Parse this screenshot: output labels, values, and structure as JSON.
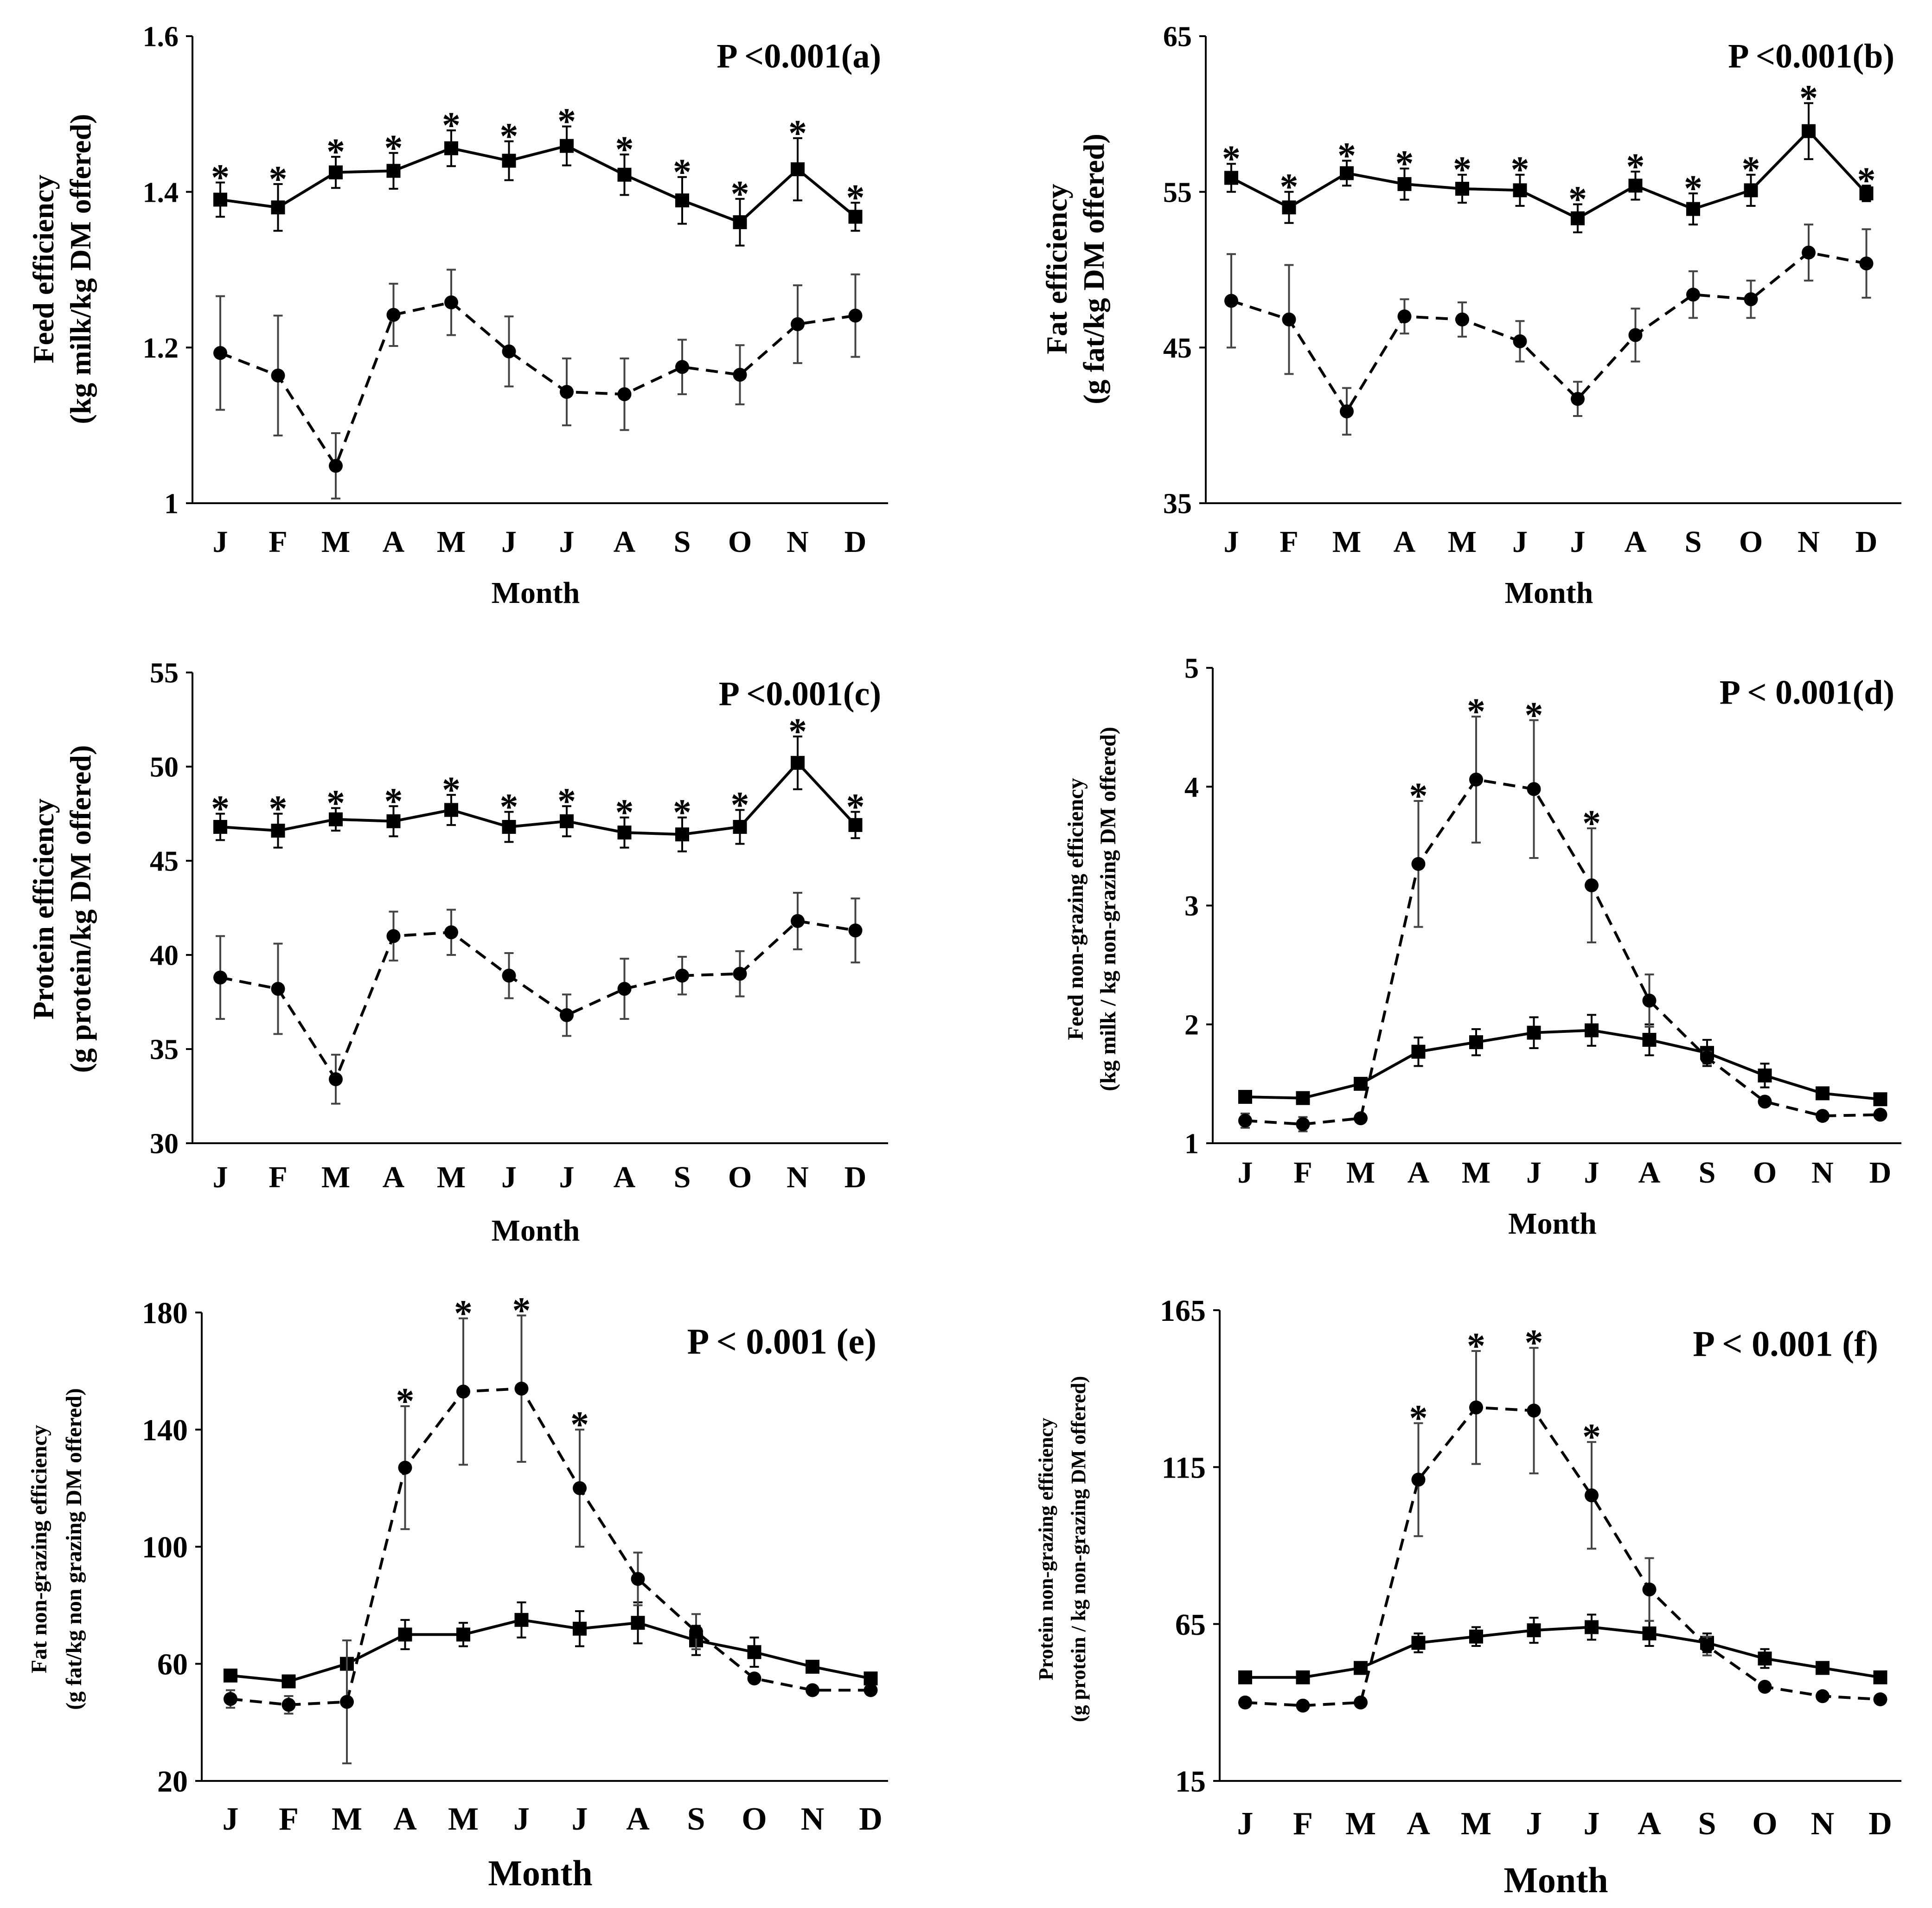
{
  "months": [
    "J",
    "F",
    "M",
    "A",
    "M",
    "J",
    "J",
    "A",
    "S",
    "O",
    "N",
    "D"
  ],
  "series_labels": {
    "solid": "Solid line, square markers",
    "dashed": "Dashed line, circle markers"
  },
  "significance_marker": "*",
  "xlabel": "Month",
  "chart_data": [
    {
      "id": "a",
      "type": "line",
      "panel_label": "P <0.001(a)",
      "ylabel_lines": [
        "Feed efficiency",
        "(kg milk/kg DM offered)"
      ],
      "ylim": [
        1,
        1.6
      ],
      "yticks": [
        1,
        1.2,
        1.4,
        1.6
      ],
      "ytick_labels": [
        "1",
        "1.2",
        "1.4",
        "1.6"
      ],
      "categories": [
        "J",
        "F",
        "M",
        "A",
        "M",
        "J",
        "J",
        "A",
        "S",
        "O",
        "N",
        "D"
      ],
      "series": [
        {
          "name": "solid",
          "marker": "square",
          "values": [
            1.39,
            1.38,
            1.425,
            1.427,
            1.456,
            1.44,
            1.459,
            1.422,
            1.389,
            1.361,
            1.429,
            1.368
          ],
          "err": [
            0.022,
            0.03,
            0.02,
            0.023,
            0.023,
            0.025,
            0.025,
            0.026,
            0.03,
            0.03,
            0.04,
            0.018
          ]
        },
        {
          "name": "dashed",
          "marker": "circle",
          "values": [
            1.193,
            1.164,
            1.048,
            1.242,
            1.258,
            1.195,
            1.143,
            1.14,
            1.175,
            1.165,
            1.23,
            1.241
          ],
          "err": [
            0.073,
            0.077,
            0.042,
            0.04,
            0.042,
            0.045,
            0.043,
            0.046,
            0.035,
            0.038,
            0.05,
            0.053
          ]
        }
      ],
      "significant": [
        true,
        true,
        true,
        true,
        true,
        true,
        true,
        true,
        true,
        true,
        true,
        true
      ]
    },
    {
      "id": "b",
      "type": "line",
      "panel_label": "P <0.001(b)",
      "ylabel_lines": [
        "Fat efficiency",
        "(g fat/kg DM offered)"
      ],
      "ylim": [
        35,
        65
      ],
      "yticks": [
        35,
        45,
        55,
        65
      ],
      "ytick_labels": [
        "35",
        "45",
        "55",
        "65"
      ],
      "categories": [
        "J",
        "F",
        "M",
        "A",
        "M",
        "J",
        "J",
        "A",
        "S",
        "O",
        "N",
        "D"
      ],
      "series": [
        {
          "name": "solid",
          "marker": "square",
          "values": [
            55.9,
            54.0,
            56.2,
            55.5,
            55.2,
            55.1,
            53.3,
            55.4,
            53.9,
            55.1,
            58.9,
            54.9
          ],
          "err": [
            0.9,
            1.0,
            0.8,
            1.0,
            0.9,
            1.0,
            0.9,
            0.9,
            1.0,
            1.0,
            1.8,
            0.5
          ]
        },
        {
          "name": "dashed",
          "marker": "circle",
          "values": [
            48.0,
            46.8,
            40.9,
            47.0,
            46.8,
            45.4,
            41.7,
            45.8,
            48.4,
            48.1,
            51.1,
            50.4
          ],
          "err": [
            3.0,
            3.5,
            1.5,
            1.1,
            1.1,
            1.3,
            1.1,
            1.7,
            1.5,
            1.2,
            1.8,
            2.2
          ]
        }
      ],
      "significant": [
        true,
        true,
        true,
        true,
        true,
        true,
        true,
        true,
        true,
        true,
        true,
        true
      ]
    },
    {
      "id": "c",
      "type": "line",
      "panel_label": "P <0.001(c)",
      "ylabel_lines": [
        "Protein efficiency",
        "(g protein/kg DM offered)"
      ],
      "ylim": [
        30,
        55
      ],
      "yticks": [
        30,
        35,
        40,
        45,
        50,
        55
      ],
      "ytick_labels": [
        "30",
        "35",
        "40",
        "45",
        "50",
        "55"
      ],
      "categories": [
        "J",
        "F",
        "M",
        "A",
        "M",
        "J",
        "J",
        "A",
        "S",
        "O",
        "N",
        "D"
      ],
      "series": [
        {
          "name": "solid",
          "marker": "square",
          "values": [
            46.8,
            46.6,
            47.2,
            47.1,
            47.7,
            46.8,
            47.1,
            46.5,
            46.4,
            46.8,
            50.2,
            46.9
          ],
          "err": [
            0.7,
            0.9,
            0.6,
            0.8,
            0.8,
            0.8,
            0.8,
            0.8,
            0.9,
            0.9,
            1.4,
            0.7
          ]
        },
        {
          "name": "dashed",
          "marker": "circle",
          "values": [
            38.8,
            38.2,
            33.4,
            41.0,
            41.2,
            38.9,
            36.8,
            38.2,
            38.9,
            39.0,
            41.8,
            41.3
          ],
          "err": [
            2.2,
            2.4,
            1.3,
            1.3,
            1.2,
            1.2,
            1.1,
            1.6,
            1.0,
            1.2,
            1.5,
            1.7
          ]
        }
      ],
      "significant": [
        true,
        true,
        true,
        true,
        true,
        true,
        true,
        true,
        true,
        true,
        true,
        true
      ]
    },
    {
      "id": "d",
      "type": "line",
      "panel_label": "P < 0.001(d)",
      "ylabel_lines": [
        "Feed non-grazing efficiency",
        "(kg milk / kg non-grazing DM offered)"
      ],
      "ylim": [
        1,
        5
      ],
      "yticks": [
        1,
        2,
        3,
        4,
        5
      ],
      "ytick_labels": [
        "1",
        "2",
        "3",
        "4",
        "5"
      ],
      "categories": [
        "J",
        "F",
        "M",
        "A",
        "M",
        "J",
        "J",
        "A",
        "S",
        "O",
        "N",
        "D"
      ],
      "series": [
        {
          "name": "solid",
          "marker": "square",
          "values": [
            1.39,
            1.38,
            1.5,
            1.77,
            1.85,
            1.93,
            1.95,
            1.87,
            1.76,
            1.57,
            1.42,
            1.37
          ],
          "err": [
            0,
            0,
            0,
            0.12,
            0.11,
            0.13,
            0.13,
            0.13,
            0.11,
            0.1,
            0,
            0
          ]
        },
        {
          "name": "dashed",
          "marker": "circle",
          "values": [
            1.19,
            1.16,
            1.21,
            3.35,
            4.06,
            3.98,
            3.17,
            2.2,
            1.72,
            1.35,
            1.23,
            1.24
          ],
          "err": [
            0.06,
            0.06,
            0,
            0.53,
            0.53,
            0.58,
            0.48,
            0.22,
            0.05,
            0,
            0,
            0.03
          ]
        }
      ],
      "significant": [
        false,
        false,
        false,
        true,
        true,
        true,
        true,
        false,
        false,
        false,
        false,
        false
      ]
    },
    {
      "id": "e",
      "type": "line",
      "panel_label": "P < 0.001 (e)",
      "ylabel_lines": [
        "Fat non-grazing efficiency",
        "(g fat/kg non grazing DM offered)"
      ],
      "ylim": [
        20,
        180
      ],
      "yticks": [
        20,
        60,
        100,
        140,
        180
      ],
      "ytick_labels": [
        "20",
        "60",
        "100",
        "140",
        "180"
      ],
      "categories": [
        "J",
        "F",
        "M",
        "A",
        "M",
        "J",
        "J",
        "A",
        "S",
        "O",
        "N",
        "D"
      ],
      "series": [
        {
          "name": "solid",
          "marker": "square",
          "values": [
            56,
            54,
            60,
            70,
            70,
            75,
            72,
            74,
            68,
            64,
            59,
            55
          ],
          "err": [
            0,
            0,
            0,
            5,
            4,
            6,
            6,
            7,
            5,
            5,
            0,
            0
          ]
        },
        {
          "name": "dashed",
          "marker": "circle",
          "values": [
            48,
            46,
            47,
            127,
            153,
            154,
            120,
            89,
            71,
            55,
            51,
            51
          ],
          "err": [
            3,
            3,
            21,
            21,
            25,
            25,
            20,
            9,
            6,
            0,
            0,
            0
          ]
        }
      ],
      "significant": [
        false,
        false,
        false,
        true,
        true,
        true,
        true,
        false,
        false,
        false,
        false,
        false
      ]
    },
    {
      "id": "f",
      "type": "line",
      "panel_label": "P < 0.001 (f)",
      "ylabel_lines": [
        "Protein non-grazing efficiency",
        "(g protein / kg non-grazing DM offered)"
      ],
      "ylim": [
        15,
        165
      ],
      "yticks": [
        15,
        65,
        115,
        165
      ],
      "ytick_labels": [
        "15",
        "65",
        "115",
        "165"
      ],
      "categories": [
        "J",
        "F",
        "M",
        "A",
        "M",
        "J",
        "J",
        "A",
        "S",
        "O",
        "N",
        "D"
      ],
      "series": [
        {
          "name": "solid",
          "marker": "square",
          "values": [
            48,
            48,
            51,
            59,
            61,
            63,
            64,
            62,
            59,
            54,
            51,
            48
          ],
          "err": [
            0,
            0,
            0,
            3,
            3,
            4,
            4,
            4,
            3,
            3,
            0,
            0
          ]
        },
        {
          "name": "dashed",
          "marker": "circle",
          "values": [
            40,
            39,
            40,
            111,
            134,
            133,
            106,
            76,
            58,
            45,
            42,
            41
          ],
          "err": [
            0,
            0,
            0,
            18,
            18,
            20,
            17,
            10,
            3,
            0,
            0,
            0
          ]
        }
      ],
      "significant": [
        false,
        false,
        false,
        true,
        true,
        true,
        true,
        false,
        false,
        false,
        false,
        false
      ]
    }
  ]
}
